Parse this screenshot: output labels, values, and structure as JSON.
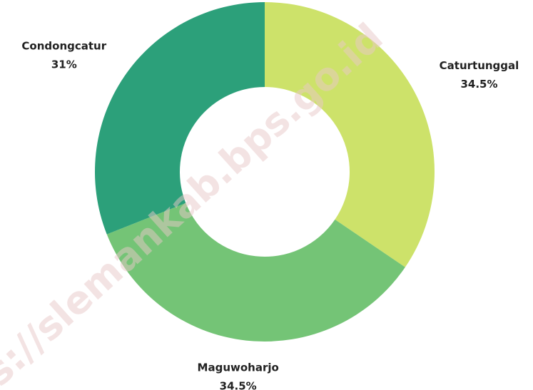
{
  "chart_data": {
    "type": "donut",
    "categories": [
      "Caturtunggal",
      "Maguwoharjo",
      "Condongcatur"
    ],
    "values": [
      34.5,
      34.5,
      31
    ],
    "value_labels": [
      "34.5%",
      "34.5%",
      "31%"
    ],
    "colors": [
      "#cde26a",
      "#74c476",
      "#2ca07a"
    ]
  },
  "watermark": "s://slemankab.bps.go.id"
}
